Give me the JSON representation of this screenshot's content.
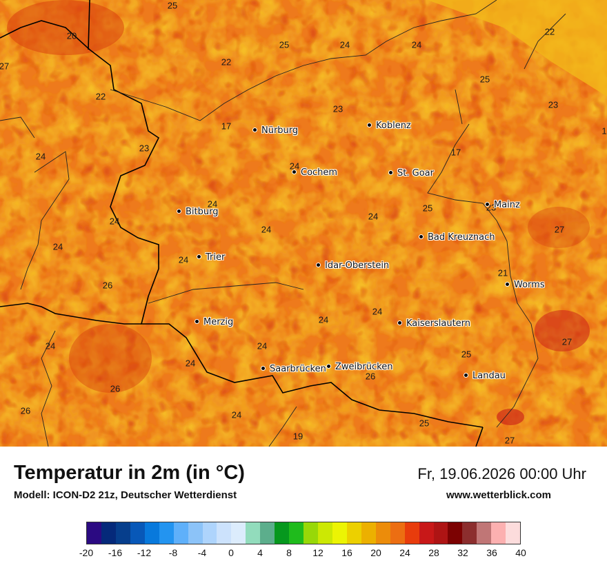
{
  "map": {
    "cities": [
      {
        "name": "Nürburg"
      },
      {
        "name": "Koblenz"
      },
      {
        "name": "Cochem"
      },
      {
        "name": "St. Goar"
      },
      {
        "name": "Bitburg"
      },
      {
        "name": "Mainz"
      },
      {
        "name": "Bad Kreuznach"
      },
      {
        "name": "Trier"
      },
      {
        "name": "Idar-Oberstein"
      },
      {
        "name": "Worms"
      },
      {
        "name": "Merzig"
      },
      {
        "name": "Kaiserslautern"
      },
      {
        "name": "Saarbrücken"
      },
      {
        "name": "Zweibrücken"
      },
      {
        "name": "Landau"
      }
    ],
    "values": [
      "25",
      "20",
      "27",
      "25",
      "24",
      "24",
      "22",
      "22",
      "22",
      "25",
      "23",
      "23",
      "17",
      "17",
      "23",
      "24",
      "24",
      "24",
      "24",
      "24",
      "25",
      "24",
      "23",
      "24",
      "24",
      "27",
      "26",
      "21",
      "24",
      "24",
      "24",
      "27",
      "24",
      "24",
      "25",
      "26",
      "26",
      "26",
      "24",
      "25",
      "19",
      "27",
      "1"
    ]
  },
  "footer": {
    "title": "Temperatur in 2m (in °C)",
    "model": "Modell: ICON-D2 21z, Deutscher Wetterdienst",
    "datetime": "Fr, 19.06.2026 00:00 Uhr",
    "website": "www.wetterblick.com"
  },
  "legend": {
    "colors": [
      "#2b0a82",
      "#05297a",
      "#063e8c",
      "#0858b8",
      "#0879dc",
      "#2394f0",
      "#5fb0fa",
      "#8cc3f8",
      "#aed4fc",
      "#cce2fc",
      "#dcecfc",
      "#92dcbc",
      "#5cae8c",
      "#06981e",
      "#1fbb1c",
      "#98d808",
      "#cce804",
      "#ecf404",
      "#ecd000",
      "#ecb000",
      "#ec8c0a",
      "#ec6e12",
      "#e83c0c",
      "#c81818",
      "#ae1414",
      "#7c0202",
      "#8c2e2e",
      "#c07676",
      "#fcb0b0",
      "#fcdcdc"
    ],
    "ticks": [
      "-20",
      "-16",
      "-12",
      "-8",
      "-4",
      "0",
      "4",
      "8",
      "12",
      "16",
      "20",
      "24",
      "28",
      "32",
      "36",
      "40"
    ]
  }
}
